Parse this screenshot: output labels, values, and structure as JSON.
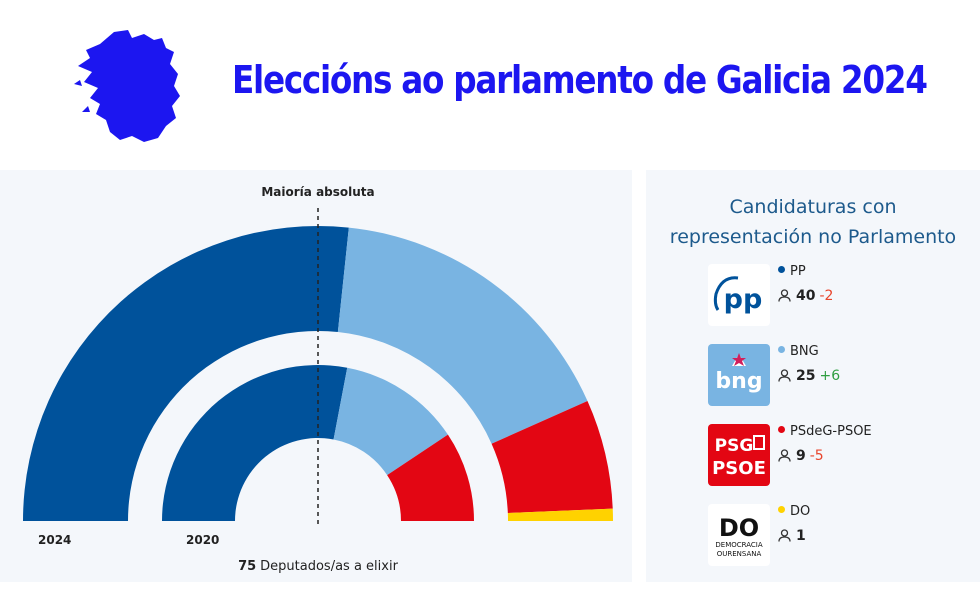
{
  "header": {
    "title": "Eleccións ao parlamento de Galicia 2024",
    "map_icon": "galicia-map-icon",
    "title_color": "#1c16f0"
  },
  "chart_data": {
    "type": "parliament-semicircle",
    "annotation": "Maioría absoluta",
    "majority_line": 38,
    "total_seats": 75,
    "footer": {
      "number": "75",
      "text": "Deputados/as a elixir"
    },
    "series": [
      {
        "label": "2024",
        "values": [
          {
            "party": "PP",
            "seats": 40,
            "color": "#00529b"
          },
          {
            "party": "BNG",
            "seats": 25,
            "color": "#79b4e2"
          },
          {
            "party": "PSdeG-PSOE",
            "seats": 9,
            "color": "#e30613"
          },
          {
            "party": "DO",
            "seats": 1,
            "color": "#ffd200"
          }
        ]
      },
      {
        "label": "2020",
        "values": [
          {
            "party": "PP",
            "seats": 42,
            "color": "#00529b"
          },
          {
            "party": "BNG",
            "seats": 19,
            "color": "#79b4e2"
          },
          {
            "party": "PSdeG-PSOE",
            "seats": 14,
            "color": "#e30613"
          }
        ]
      }
    ]
  },
  "legend": {
    "title_line1": "Candidaturas con",
    "title_line2": "representación no Parlamento",
    "items": [
      {
        "name": "PP",
        "seats": "40",
        "change": "-2",
        "dot_color": "#00529b",
        "change_color": "#e8452c",
        "logo": "pp-logo",
        "logo_text": "pp"
      },
      {
        "name": "BNG",
        "seats": "25",
        "change": "+6",
        "dot_color": "#79b4e2",
        "change_color": "#2f9e41",
        "logo": "bng-logo",
        "logo_text": "bng"
      },
      {
        "name": "PSdeG-PSOE",
        "seats": "9",
        "change": "-5",
        "dot_color": "#e30613",
        "change_color": "#e8452c",
        "logo": "psoe-logo",
        "logo_text_1": "PSG",
        "logo_text_2": "PSOE"
      },
      {
        "name": "DO",
        "seats": "1",
        "change": "",
        "dot_color": "#ffd200",
        "change_color": "#222222",
        "logo": "do-logo",
        "logo_text": "DO",
        "logo_sub_1": "DEMOCRACIA",
        "logo_sub_2": "OURENSANA"
      }
    ]
  }
}
